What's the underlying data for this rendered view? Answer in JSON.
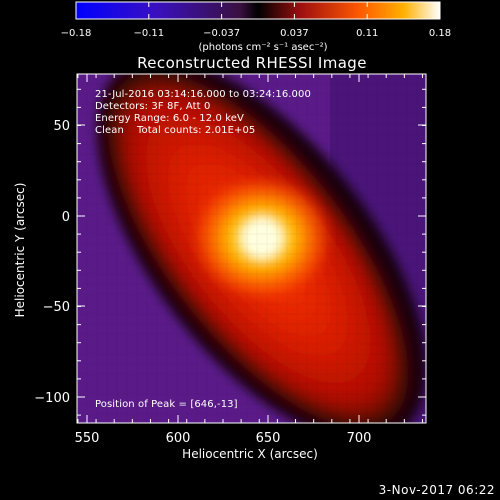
{
  "colorbar": {
    "ticks": [
      "−0.18",
      "−0.11",
      "−0.037",
      "0.037",
      "0.11",
      "0.18"
    ],
    "unit_label": "(photons cm⁻² s⁻¹ asec⁻²)",
    "colors": {
      "low": "#0000ff",
      "mid": "#000000",
      "high": "#ffffff"
    }
  },
  "plot": {
    "title": "Reconstructed RHESSI Image",
    "xlabel": "Heliocentric X (arcsec)",
    "ylabel": "Heliocentric Y (arcsec)",
    "x_ticks": [
      "550",
      "600",
      "650",
      "700"
    ],
    "y_ticks": [
      "50",
      "0",
      "−50",
      "−100"
    ],
    "info_lines": [
      "21-Jul-2016 03:14:16.000 to 03:24:16.000",
      "Detectors: 3F 8F, Att 0",
      "Energy Range: 6.0 - 12.0 keV",
      "Clean    Total counts: 2.01E+05"
    ],
    "peak_label": "Position of Peak = [646,-13]"
  },
  "footer": {
    "date": "3-Nov-2017 06:22"
  }
}
